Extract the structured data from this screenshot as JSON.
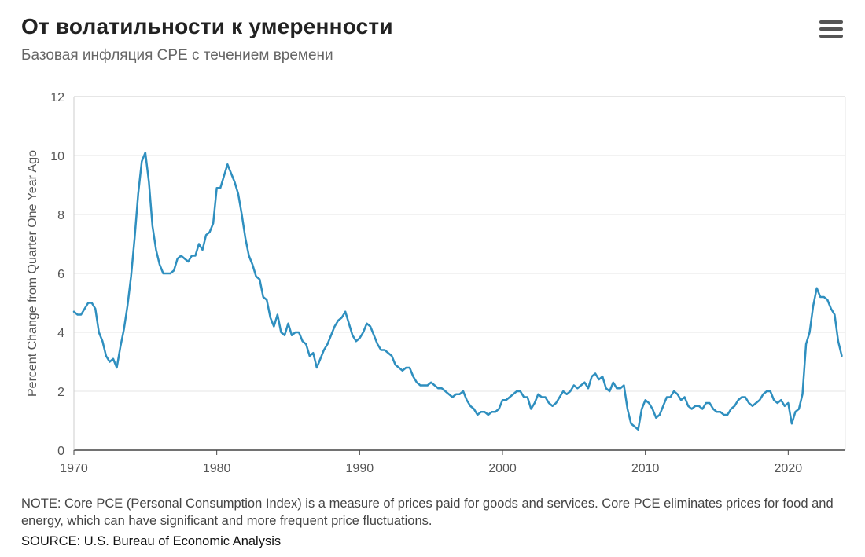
{
  "title": "От волатильности к умеренности",
  "subtitle": "Базовая инфляция CPE с течением времени",
  "menu_icon": "hamburger-menu-icon",
  "note": "NOTE: Core PCE (Personal Consumption Index) is a measure of prices paid for goods and services. Core PCE eliminates prices for food and energy, which can have significant and more frequent price fluctuations.",
  "source": "SOURCE: U.S. Bureau of Economic Analysis",
  "colors": {
    "line": "#2f8fbf",
    "grid": "#e6e6e6",
    "axis": "#444444",
    "title": "#222222"
  },
  "chart_data": {
    "type": "line",
    "title": "От волатильности к умеренности",
    "subtitle": "Базовая инфляция CPE с течением времени",
    "xlabel": "",
    "ylabel": "Percent Change from Quarter One Year Ago",
    "xlim": [
      1970,
      2024
    ],
    "ylim": [
      0,
      12
    ],
    "x_ticks": [
      1970,
      1980,
      1990,
      2000,
      2010,
      2020
    ],
    "y_ticks": [
      0,
      2,
      4,
      6,
      8,
      10,
      12
    ],
    "grid": true,
    "series": [
      {
        "name": "Core PCE",
        "points": [
          [
            1970.0,
            4.7
          ],
          [
            1970.25,
            4.6
          ],
          [
            1970.5,
            4.6
          ],
          [
            1970.75,
            4.8
          ],
          [
            1971.0,
            5.0
          ],
          [
            1971.25,
            5.0
          ],
          [
            1971.5,
            4.8
          ],
          [
            1971.75,
            4.0
          ],
          [
            1972.0,
            3.7
          ],
          [
            1972.25,
            3.2
          ],
          [
            1972.5,
            3.0
          ],
          [
            1972.75,
            3.1
          ],
          [
            1973.0,
            2.8
          ],
          [
            1973.25,
            3.5
          ],
          [
            1973.5,
            4.1
          ],
          [
            1973.75,
            4.9
          ],
          [
            1974.0,
            5.9
          ],
          [
            1974.25,
            7.2
          ],
          [
            1974.5,
            8.7
          ],
          [
            1974.75,
            9.8
          ],
          [
            1975.0,
            10.1
          ],
          [
            1975.25,
            9.1
          ],
          [
            1975.5,
            7.6
          ],
          [
            1975.75,
            6.8
          ],
          [
            1976.0,
            6.3
          ],
          [
            1976.25,
            6.0
          ],
          [
            1976.5,
            6.0
          ],
          [
            1976.75,
            6.0
          ],
          [
            1977.0,
            6.1
          ],
          [
            1977.25,
            6.5
          ],
          [
            1977.5,
            6.6
          ],
          [
            1977.75,
            6.5
          ],
          [
            1978.0,
            6.4
          ],
          [
            1978.25,
            6.6
          ],
          [
            1978.5,
            6.6
          ],
          [
            1978.75,
            7.0
          ],
          [
            1979.0,
            6.8
          ],
          [
            1979.25,
            7.3
          ],
          [
            1979.5,
            7.4
          ],
          [
            1979.75,
            7.7
          ],
          [
            1980.0,
            8.9
          ],
          [
            1980.25,
            8.9
          ],
          [
            1980.5,
            9.3
          ],
          [
            1980.75,
            9.7
          ],
          [
            1981.0,
            9.4
          ],
          [
            1981.25,
            9.1
          ],
          [
            1981.5,
            8.7
          ],
          [
            1981.75,
            8.0
          ],
          [
            1982.0,
            7.2
          ],
          [
            1982.25,
            6.6
          ],
          [
            1982.5,
            6.3
          ],
          [
            1982.75,
            5.9
          ],
          [
            1983.0,
            5.8
          ],
          [
            1983.25,
            5.2
          ],
          [
            1983.5,
            5.1
          ],
          [
            1983.75,
            4.5
          ],
          [
            1984.0,
            4.2
          ],
          [
            1984.25,
            4.6
          ],
          [
            1984.5,
            4.0
          ],
          [
            1984.75,
            3.9
          ],
          [
            1985.0,
            4.3
          ],
          [
            1985.25,
            3.9
          ],
          [
            1985.5,
            4.0
          ],
          [
            1985.75,
            4.0
          ],
          [
            1986.0,
            3.7
          ],
          [
            1986.25,
            3.6
          ],
          [
            1986.5,
            3.2
          ],
          [
            1986.75,
            3.3
          ],
          [
            1987.0,
            2.8
          ],
          [
            1987.25,
            3.1
          ],
          [
            1987.5,
            3.4
          ],
          [
            1987.75,
            3.6
          ],
          [
            1988.0,
            3.9
          ],
          [
            1988.25,
            4.2
          ],
          [
            1988.5,
            4.4
          ],
          [
            1988.75,
            4.5
          ],
          [
            1989.0,
            4.7
          ],
          [
            1989.25,
            4.3
          ],
          [
            1989.5,
            3.9
          ],
          [
            1989.75,
            3.7
          ],
          [
            1990.0,
            3.8
          ],
          [
            1990.25,
            4.0
          ],
          [
            1990.5,
            4.3
          ],
          [
            1990.75,
            4.2
          ],
          [
            1991.0,
            3.9
          ],
          [
            1991.25,
            3.6
          ],
          [
            1991.5,
            3.4
          ],
          [
            1991.75,
            3.4
          ],
          [
            1992.0,
            3.3
          ],
          [
            1992.25,
            3.2
          ],
          [
            1992.5,
            2.9
          ],
          [
            1992.75,
            2.8
          ],
          [
            1993.0,
            2.7
          ],
          [
            1993.25,
            2.8
          ],
          [
            1993.5,
            2.8
          ],
          [
            1993.75,
            2.5
          ],
          [
            1994.0,
            2.3
          ],
          [
            1994.25,
            2.2
          ],
          [
            1994.5,
            2.2
          ],
          [
            1994.75,
            2.2
          ],
          [
            1995.0,
            2.3
          ],
          [
            1995.25,
            2.2
          ],
          [
            1995.5,
            2.1
          ],
          [
            1995.75,
            2.1
          ],
          [
            1996.0,
            2.0
          ],
          [
            1996.25,
            1.9
          ],
          [
            1996.5,
            1.8
          ],
          [
            1996.75,
            1.9
          ],
          [
            1997.0,
            1.9
          ],
          [
            1997.25,
            2.0
          ],
          [
            1997.5,
            1.7
          ],
          [
            1997.75,
            1.5
          ],
          [
            1998.0,
            1.4
          ],
          [
            1998.25,
            1.2
          ],
          [
            1998.5,
            1.3
          ],
          [
            1998.75,
            1.3
          ],
          [
            1999.0,
            1.2
          ],
          [
            1999.25,
            1.3
          ],
          [
            1999.5,
            1.3
          ],
          [
            1999.75,
            1.4
          ],
          [
            2000.0,
            1.7
          ],
          [
            2000.25,
            1.7
          ],
          [
            2000.5,
            1.8
          ],
          [
            2000.75,
            1.9
          ],
          [
            2001.0,
            2.0
          ],
          [
            2001.25,
            2.0
          ],
          [
            2001.5,
            1.8
          ],
          [
            2001.75,
            1.8
          ],
          [
            2002.0,
            1.4
          ],
          [
            2002.25,
            1.6
          ],
          [
            2002.5,
            1.9
          ],
          [
            2002.75,
            1.8
          ],
          [
            2003.0,
            1.8
          ],
          [
            2003.25,
            1.6
          ],
          [
            2003.5,
            1.5
          ],
          [
            2003.75,
            1.6
          ],
          [
            2004.0,
            1.8
          ],
          [
            2004.25,
            2.0
          ],
          [
            2004.5,
            1.9
          ],
          [
            2004.75,
            2.0
          ],
          [
            2005.0,
            2.2
          ],
          [
            2005.25,
            2.1
          ],
          [
            2005.5,
            2.2
          ],
          [
            2005.75,
            2.3
          ],
          [
            2006.0,
            2.1
          ],
          [
            2006.25,
            2.5
          ],
          [
            2006.5,
            2.6
          ],
          [
            2006.75,
            2.4
          ],
          [
            2007.0,
            2.5
          ],
          [
            2007.25,
            2.1
          ],
          [
            2007.5,
            2.0
          ],
          [
            2007.75,
            2.3
          ],
          [
            2008.0,
            2.1
          ],
          [
            2008.25,
            2.1
          ],
          [
            2008.5,
            2.2
          ],
          [
            2008.75,
            1.4
          ],
          [
            2009.0,
            0.9
          ],
          [
            2009.25,
            0.8
          ],
          [
            2009.5,
            0.7
          ],
          [
            2009.75,
            1.4
          ],
          [
            2010.0,
            1.7
          ],
          [
            2010.25,
            1.6
          ],
          [
            2010.5,
            1.4
          ],
          [
            2010.75,
            1.1
          ],
          [
            2011.0,
            1.2
          ],
          [
            2011.25,
            1.5
          ],
          [
            2011.5,
            1.8
          ],
          [
            2011.75,
            1.8
          ],
          [
            2012.0,
            2.0
          ],
          [
            2012.25,
            1.9
          ],
          [
            2012.5,
            1.7
          ],
          [
            2012.75,
            1.8
          ],
          [
            2013.0,
            1.5
          ],
          [
            2013.25,
            1.4
          ],
          [
            2013.5,
            1.5
          ],
          [
            2013.75,
            1.5
          ],
          [
            2014.0,
            1.4
          ],
          [
            2014.25,
            1.6
          ],
          [
            2014.5,
            1.6
          ],
          [
            2014.75,
            1.4
          ],
          [
            2015.0,
            1.3
          ],
          [
            2015.25,
            1.3
          ],
          [
            2015.5,
            1.2
          ],
          [
            2015.75,
            1.2
          ],
          [
            2016.0,
            1.4
          ],
          [
            2016.25,
            1.5
          ],
          [
            2016.5,
            1.7
          ],
          [
            2016.75,
            1.8
          ],
          [
            2017.0,
            1.8
          ],
          [
            2017.25,
            1.6
          ],
          [
            2017.5,
            1.5
          ],
          [
            2017.75,
            1.6
          ],
          [
            2018.0,
            1.7
          ],
          [
            2018.25,
            1.9
          ],
          [
            2018.5,
            2.0
          ],
          [
            2018.75,
            2.0
          ],
          [
            2019.0,
            1.7
          ],
          [
            2019.25,
            1.6
          ],
          [
            2019.5,
            1.7
          ],
          [
            2019.75,
            1.5
          ],
          [
            2020.0,
            1.6
          ],
          [
            2020.25,
            0.9
          ],
          [
            2020.5,
            1.3
          ],
          [
            2020.75,
            1.4
          ],
          [
            2021.0,
            1.9
          ],
          [
            2021.25,
            3.6
          ],
          [
            2021.5,
            4.0
          ],
          [
            2021.75,
            4.9
          ],
          [
            2022.0,
            5.5
          ],
          [
            2022.25,
            5.2
          ],
          [
            2022.5,
            5.2
          ],
          [
            2022.75,
            5.1
          ],
          [
            2023.0,
            4.8
          ],
          [
            2023.25,
            4.6
          ],
          [
            2023.5,
            3.7
          ],
          [
            2023.75,
            3.2
          ]
        ]
      }
    ]
  }
}
